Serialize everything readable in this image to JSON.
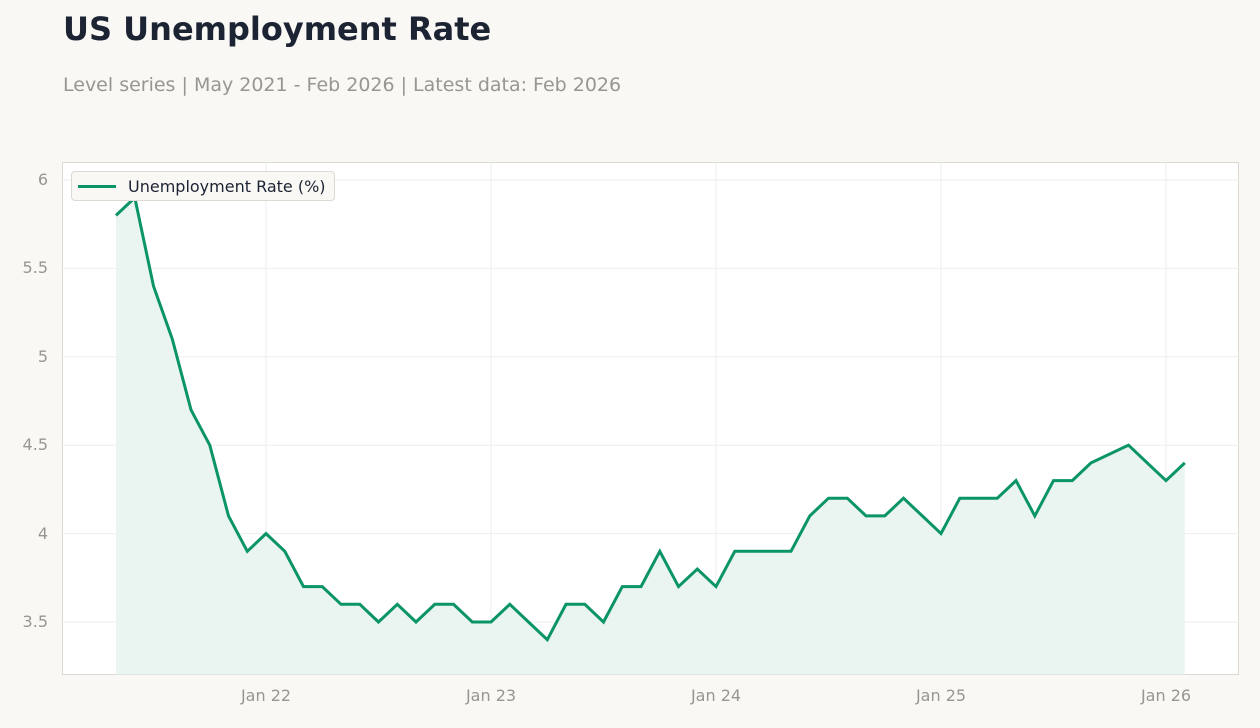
{
  "header": {
    "title": "US Unemployment Rate",
    "subtitle": "Level series | May 2021 - Feb 2026 | Latest data: Feb 2026"
  },
  "legend": {
    "label": "Unemployment Rate (%)"
  },
  "colors": {
    "line": "#0a9468",
    "fill": "#e8f4ef",
    "grid": "#eeeeee",
    "frame": "#ddd9d2",
    "background": "#f9f8f5"
  },
  "chart_data": {
    "type": "area",
    "title": "US Unemployment Rate",
    "subtitle": "Level series | May 2021 - Feb 2026 | Latest data: Feb 2026",
    "xlabel": "",
    "ylabel": "",
    "ylim": [
      3.2,
      6.1
    ],
    "grid": true,
    "legend_position": "upper left",
    "y_ticks": [
      "3.5",
      "4",
      "4.5",
      "5",
      "5.5",
      "6"
    ],
    "x_ticks": [
      "Jan 22",
      "Jan 23",
      "Jan 24",
      "Jan 25",
      "Jan 26"
    ],
    "series": [
      {
        "name": "Unemployment Rate (%)",
        "x": [
          "2021-05",
          "2021-06",
          "2021-07",
          "2021-08",
          "2021-09",
          "2021-10",
          "2021-11",
          "2021-12",
          "2022-01",
          "2022-02",
          "2022-03",
          "2022-04",
          "2022-05",
          "2022-06",
          "2022-07",
          "2022-08",
          "2022-09",
          "2022-10",
          "2022-11",
          "2022-12",
          "2023-01",
          "2023-02",
          "2023-03",
          "2023-04",
          "2023-05",
          "2023-06",
          "2023-07",
          "2023-08",
          "2023-09",
          "2023-10",
          "2023-11",
          "2023-12",
          "2024-01",
          "2024-02",
          "2024-03",
          "2024-04",
          "2024-05",
          "2024-06",
          "2024-07",
          "2024-08",
          "2024-09",
          "2024-10",
          "2024-11",
          "2024-12",
          "2025-01",
          "2025-02",
          "2025-03",
          "2025-04",
          "2025-05",
          "2025-06",
          "2025-07",
          "2025-08",
          "2025-09",
          "2025-11",
          "2026-01",
          "2026-02"
        ],
        "values": [
          5.8,
          5.9,
          5.4,
          5.1,
          4.7,
          4.5,
          4.1,
          3.9,
          4.0,
          3.9,
          3.7,
          3.7,
          3.6,
          3.6,
          3.5,
          3.6,
          3.5,
          3.6,
          3.6,
          3.5,
          3.5,
          3.6,
          3.5,
          3.4,
          3.6,
          3.6,
          3.5,
          3.7,
          3.7,
          3.9,
          3.7,
          3.8,
          3.7,
          3.9,
          3.9,
          3.9,
          3.9,
          4.1,
          4.2,
          4.2,
          4.1,
          4.1,
          4.2,
          4.1,
          4.0,
          4.2,
          4.2,
          4.2,
          4.3,
          4.1,
          4.3,
          4.3,
          4.4,
          4.5,
          4.3,
          4.4
        ]
      }
    ]
  }
}
